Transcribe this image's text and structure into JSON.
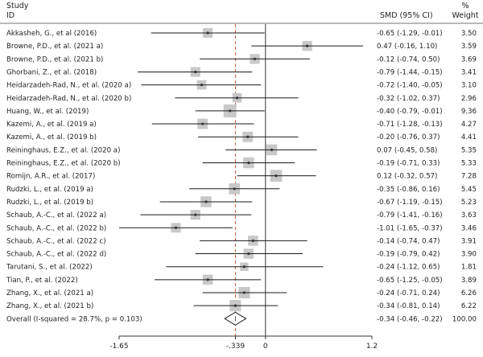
{
  "chart_data": {
    "type": "forest",
    "header": {
      "col1_line1": "Study",
      "col1_line2": "ID",
      "col2": "SMD (95% CI)",
      "col3_line1": "%",
      "col3_line2": "Weight"
    },
    "studies": [
      {
        "label": "Akkasheh, G., et al (2016)",
        "smd": -0.65,
        "lo": -1.29,
        "hi": -0.01,
        "ci_text": "-0.65 (-1.29, -0.01)",
        "weight": "3.50"
      },
      {
        "label": "Browne, P.D., et al. (2021 a)",
        "smd": 0.47,
        "lo": -0.16,
        "hi": 1.1,
        "ci_text": "0.47 (-0.16, 1.10)",
        "weight": "3.59"
      },
      {
        "label": "Browne, P.D., et al. (2021 b)",
        "smd": -0.12,
        "lo": -0.74,
        "hi": 0.5,
        "ci_text": "-0.12 (-0.74, 0.50)",
        "weight": "3.69"
      },
      {
        "label": "Ghorbani, Z., et al. (2018)",
        "smd": -0.79,
        "lo": -1.44,
        "hi": -0.15,
        "ci_text": "-0.79 (-1.44, -0.15)",
        "weight": "3.41"
      },
      {
        "label": "Heidarzadeh-Rad, N., et al. (2020 a)",
        "smd": -0.72,
        "lo": -1.4,
        "hi": -0.05,
        "ci_text": "-0.72 (-1.40, -0.05)",
        "weight": "3.10"
      },
      {
        "label": "Heidarzadeh-Rad, N., et al. (2020 b)",
        "smd": -0.32,
        "lo": -1.02,
        "hi": 0.37,
        "ci_text": "-0.32 (-1.02, 0.37)",
        "weight": "2.96"
      },
      {
        "label": "Huang, W., et al. (2019)",
        "smd": -0.4,
        "lo": -0.79,
        "hi": -0.01,
        "ci_text": "-0.40 (-0.79, -0.01)",
        "weight": "9.36"
      },
      {
        "label": "Kazemi, A., et al. (2019 a)",
        "smd": -0.71,
        "lo": -1.28,
        "hi": -0.13,
        "ci_text": "-0.71 (-1.28, -0.13)",
        "weight": "4.27"
      },
      {
        "label": "Kazemi, A., et al. (2019 b)",
        "smd": -0.2,
        "lo": -0.76,
        "hi": 0.37,
        "ci_text": "-0.20 (-0.76, 0.37)",
        "weight": "4.41"
      },
      {
        "label": "Reininghaus, E.Z., et al. (2020 a)",
        "smd": 0.07,
        "lo": -0.45,
        "hi": 0.58,
        "ci_text": "0.07 (-0.45, 0.58)",
        "weight": "5.35"
      },
      {
        "label": "Reininghaus, E.Z., et al. (2020 b)",
        "smd": -0.19,
        "lo": -0.71,
        "hi": 0.33,
        "ci_text": "-0.19 (-0.71, 0.33)",
        "weight": "5.33"
      },
      {
        "label": "Romijn, A.R., et al. (2017)",
        "smd": 0.12,
        "lo": -0.32,
        "hi": 0.57,
        "ci_text": "0.12 (-0.32, 0.57)",
        "weight": "7.28"
      },
      {
        "label": "Rudzki, L., et al. (2019 a)",
        "smd": -0.35,
        "lo": -0.86,
        "hi": 0.16,
        "ci_text": "-0.35 (-0.86, 0.16)",
        "weight": "5.45"
      },
      {
        "label": "Rudzki, L., et al. (2019 b)",
        "smd": -0.67,
        "lo": -1.19,
        "hi": -0.15,
        "ci_text": "-0.67 (-1.19, -0.15)",
        "weight": "5.23"
      },
      {
        "label": "Schaub, A.-C., et al. (2022 a)",
        "smd": -0.79,
        "lo": -1.41,
        "hi": -0.16,
        "ci_text": "-0.79 (-1.41, -0.16)",
        "weight": "3.63"
      },
      {
        "label": "Schaub, A.-C., et al. (2022 b)",
        "smd": -1.01,
        "lo": -1.65,
        "hi": -0.37,
        "ci_text": "-1.01 (-1.65, -0.37)",
        "weight": "3.46"
      },
      {
        "label": "Schaub, A.-C., et al. (2022 c)",
        "smd": -0.14,
        "lo": -0.74,
        "hi": 0.47,
        "ci_text": "-0.14 (-0.74, 0.47)",
        "weight": "3.91"
      },
      {
        "label": "Schaub, A.-C., et al. (2022 d)",
        "smd": -0.19,
        "lo": -0.79,
        "hi": 0.42,
        "ci_text": "-0.19 (-0.79, 0.42)",
        "weight": "3.90"
      },
      {
        "label": "Tarutani, S., et al. (2022)",
        "smd": -0.24,
        "lo": -1.12,
        "hi": 0.65,
        "ci_text": "-0.24 (-1.12, 0.65)",
        "weight": "1.81"
      },
      {
        "label": "Tian, P., et al. (2022)",
        "smd": -0.65,
        "lo": -1.25,
        "hi": -0.05,
        "ci_text": "-0.65 (-1.25, -0.05)",
        "weight": "3.89"
      },
      {
        "label": "Zhang, X., et al. (2021 a)",
        "smd": -0.24,
        "lo": -0.71,
        "hi": 0.24,
        "ci_text": "-0.24 (-0.71, 0.24)",
        "weight": "6.26"
      },
      {
        "label": "Zhang, X., et al. (2021 b)",
        "smd": -0.34,
        "lo": -0.81,
        "hi": 0.14,
        "ci_text": "-0.34 (-0.81, 0.14)",
        "weight": "6.22"
      }
    ],
    "overall": {
      "label": "Overall  (I-squared = 28.7%, p = 0.103)",
      "smd": -0.34,
      "lo": -0.46,
      "hi": -0.22,
      "ci_text": "-0.34 (-0.46, -0.22)",
      "weight": "100.00"
    },
    "x_ticks": [
      {
        "value": -1.65,
        "label": "-1.65"
      },
      {
        "value": -0.339,
        "label": "-.339"
      },
      {
        "value": 0,
        "label": "0"
      },
      {
        "value": 1.2,
        "label": "1.2"
      }
    ],
    "null_line": 0,
    "pooled_line": -0.339,
    "xlim": [
      -1.65,
      1.2
    ],
    "colors": {
      "pooled_line": "#c0623a",
      "box": "#c8c8c8",
      "line": "#1a1a1a",
      "point": "#333333"
    }
  }
}
